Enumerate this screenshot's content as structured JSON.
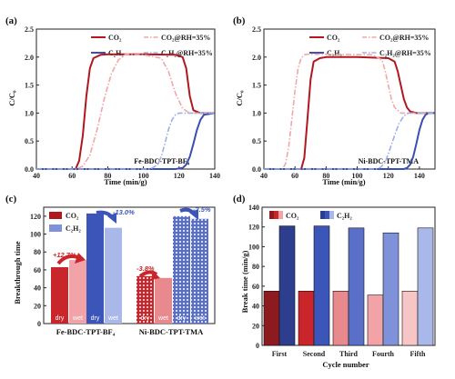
{
  "panels": {
    "a": {
      "label": "(a)",
      "xlabel": "Time (min/g)",
      "ylabel": "C/C₀",
      "xlim": [
        40,
        140
      ],
      "ylim": [
        0,
        2.5
      ],
      "xticks": [
        "40",
        "60",
        "80",
        "100",
        "120",
        "140"
      ],
      "yticks": [
        "0.0",
        "0.5",
        "1.0",
        "1.5",
        "2.0",
        "2.5"
      ],
      "annotation": "Fe-BDC-TPT-BF₄",
      "legend": [
        "CO₂",
        "CO₂@RH=35%",
        "C₂H₂",
        "C₂H₂@RH=35%"
      ]
    },
    "b": {
      "label": "(b)",
      "xlabel": "Time (min/g)",
      "ylabel": "C/C₀",
      "xlim": [
        40,
        150
      ],
      "ylim": [
        0,
        2.5
      ],
      "xticks": [
        "40",
        "60",
        "80",
        "100",
        "120",
        "140"
      ],
      "yticks": [
        "0.0",
        "0.5",
        "1.0",
        "1.5",
        "2.0",
        "2.5"
      ],
      "annotation": "Ni-BDC-TPT-TMA",
      "legend": [
        "CO₂",
        "CO₂@RH=35%",
        "C₂H₂",
        "C₂H₂@RH=35%"
      ]
    },
    "c": {
      "label": "(c)",
      "ylabel": "Breakthrough time",
      "yticks": [
        "0",
        "20",
        "40",
        "60",
        "80",
        "100",
        "120"
      ],
      "legend": [
        "CO₂",
        "C₂H₂"
      ],
      "groups": [
        "Fe-BDC-TPT-BF₄",
        "Ni-BDC-TPT-TMA"
      ],
      "dry": "dry",
      "wet": "wet",
      "pct_fe_co2": "+12.7%",
      "pct_fe_c2h2": "-13.0%",
      "pct_ni_co2": "-3.8%",
      "pct_ni_c2h2": "-2.5%"
    },
    "d": {
      "label": "(d)",
      "ylabel": "Break time (min/g)",
      "xlabel": "Cycle number",
      "yticks": [
        "0",
        "20",
        "40",
        "60",
        "80",
        "100",
        "120",
        "140"
      ],
      "legend": [
        "CO₂",
        "C₂H₂"
      ],
      "cycles": [
        "First",
        "Second",
        "Third",
        "Fourth",
        "Fifth"
      ]
    }
  },
  "colors": {
    "co2_dark": "#b0181f",
    "co2_light": "#f2a7aa",
    "c2h2_dark": "#3a4fb0",
    "c2h2_light": "#9eb0e6"
  },
  "chart_data": [
    {
      "panel": "a",
      "type": "line",
      "xlim": [
        40,
        140
      ],
      "ylim": [
        0,
        2.5
      ],
      "series": [
        {
          "name": "CO₂",
          "x": [
            40,
            62,
            64,
            66,
            68,
            70,
            72,
            76,
            80,
            100,
            118,
            122,
            124,
            126,
            128,
            132,
            140
          ],
          "y": [
            0,
            0,
            0.15,
            0.6,
            1.3,
            1.8,
            1.98,
            2.04,
            2.05,
            2.05,
            2.04,
            2.0,
            1.8,
            1.3,
            1.05,
            1.0,
            1.0
          ]
        },
        {
          "name": "CO₂@RH=35%",
          "x": [
            40,
            62,
            66,
            70,
            74,
            78,
            82,
            86,
            90,
            100,
            110,
            114,
            118,
            122,
            126,
            140
          ],
          "y": [
            0,
            0,
            0.05,
            0.25,
            0.7,
            1.25,
            1.7,
            1.95,
            2.05,
            2.04,
            1.98,
            1.75,
            1.35,
            1.08,
            1.0,
            1.0
          ]
        },
        {
          "name": "C₂H₂",
          "x": [
            40,
            118,
            122,
            124,
            126,
            128,
            130,
            132,
            134,
            140
          ],
          "y": [
            0,
            0,
            0.02,
            0.08,
            0.22,
            0.45,
            0.7,
            0.88,
            0.97,
            1.0
          ]
        },
        {
          "name": "C₂H₂@RH=35%",
          "x": [
            40,
            104,
            108,
            110,
            112,
            114,
            116,
            118,
            120,
            124,
            140
          ],
          "y": [
            0,
            0,
            0.08,
            0.22,
            0.45,
            0.7,
            0.88,
            0.97,
            1.0,
            1.0,
            1.0
          ]
        }
      ]
    },
    {
      "panel": "b",
      "type": "line",
      "xlim": [
        40,
        150
      ],
      "ylim": [
        0,
        2.5
      ],
      "series": [
        {
          "name": "CO₂",
          "x": [
            40,
            64,
            66,
            68,
            70,
            72,
            76,
            80,
            100,
            120,
            124,
            126,
            128,
            130,
            132,
            134,
            138,
            150
          ],
          "y": [
            0,
            0,
            0.2,
            0.9,
            1.6,
            1.92,
            1.98,
            2.0,
            2.0,
            1.98,
            1.92,
            1.75,
            1.5,
            1.25,
            1.1,
            1.03,
            1.0,
            1.0
          ]
        },
        {
          "name": "CO₂@RH=35%",
          "x": [
            40,
            52,
            54,
            56,
            58,
            60,
            62,
            64,
            66,
            68,
            80,
            110,
            116,
            118,
            120,
            122,
            124,
            128,
            150
          ],
          "y": [
            0,
            0,
            0.1,
            0.4,
            0.9,
            1.4,
            1.8,
            1.98,
            2.04,
            2.05,
            2.05,
            2.04,
            1.95,
            1.75,
            1.5,
            1.25,
            1.1,
            1.0,
            1.0
          ]
        },
        {
          "name": "C₂H₂",
          "x": [
            40,
            130,
            132,
            134,
            136,
            138,
            140,
            142,
            144,
            146,
            150
          ],
          "y": [
            0,
            0,
            0.02,
            0.08,
            0.22,
            0.45,
            0.7,
            0.88,
            0.97,
            1.0,
            1.0
          ]
        },
        {
          "name": "C₂H₂@RH=35%",
          "x": [
            40,
            112,
            115,
            118,
            121,
            124,
            127,
            130,
            133,
            136,
            150
          ],
          "y": [
            0,
            0,
            0.03,
            0.12,
            0.35,
            0.6,
            0.82,
            0.95,
            1.0,
            1.0,
            1.0
          ]
        }
      ]
    },
    {
      "panel": "c",
      "type": "bar",
      "categories": [
        "Fe-BDC-TPT-BF₄",
        "Ni-BDC-TPT-TMA"
      ],
      "ylim": [
        0,
        130
      ],
      "series": [
        {
          "name": "CO₂ dry",
          "values": [
            63,
            53
          ]
        },
        {
          "name": "CO₂ wet",
          "values": [
            71,
            51
          ]
        },
        {
          "name": "C₂H₂ dry",
          "values": [
            123,
            120
          ]
        },
        {
          "name": "C₂H₂ wet",
          "values": [
            107,
            117
          ]
        }
      ]
    },
    {
      "panel": "d",
      "type": "bar",
      "categories": [
        "First",
        "Second",
        "Third",
        "Fourth",
        "Fifth"
      ],
      "ylim": [
        0,
        140
      ],
      "series": [
        {
          "name": "CO₂",
          "values": [
            55,
            55,
            55,
            51,
            55
          ]
        },
        {
          "name": "C₂H₂",
          "values": [
            121,
            121,
            119,
            114,
            119
          ]
        }
      ]
    }
  ]
}
